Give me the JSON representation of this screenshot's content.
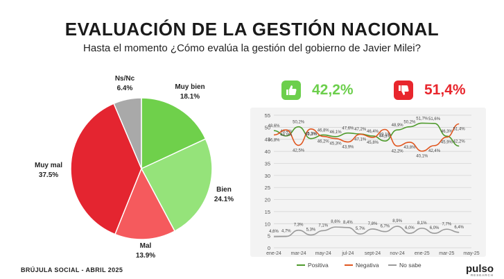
{
  "header": {
    "title": "EVALUACIÓN DE LA GESTIÓN NACIONAL",
    "subtitle": "Hasta el momento ¿Cómo evalúa la gestión del gobierno de Javier Milei?"
  },
  "summary": {
    "positive": {
      "value": "42,2%",
      "icon": "thumbs-up-icon",
      "color": "#6ccf4c"
    },
    "negative": {
      "value": "51,4%",
      "icon": "thumbs-down-icon",
      "color": "#e8262d"
    }
  },
  "footer": {
    "source": "BRÚJULA SOCIAL - ABRIL 2025"
  },
  "brand": {
    "name": "pulso",
    "tagline": "RESEARCH"
  },
  "chart_data": [
    {
      "type": "pie",
      "slices": [
        {
          "label": "Muy bien",
          "value_label": "18.1%",
          "value": 18.1,
          "color": "#6fd04b"
        },
        {
          "label": "Bien",
          "value_label": "24.1%",
          "value": 24.1,
          "color": "#95e37a"
        },
        {
          "label": "Mal",
          "value_label": "13.9%",
          "value": 13.9,
          "color": "#f55a5d"
        },
        {
          "label": "Muy mal",
          "value_label": "37.5%",
          "value": 37.5,
          "color": "#e42530"
        },
        {
          "label": "Ns/Nc",
          "value_label": "6.4%",
          "value": 6.4,
          "color": "#a9a9a9"
        }
      ]
    },
    {
      "type": "line",
      "x": [
        "ene-24",
        "feb-24",
        "mar-24",
        "abr-24",
        "may-24",
        "jun-24",
        "jul-24",
        "ago-24",
        "sept-24",
        "oct-24",
        "nov-24",
        "dic-24",
        "ene-25",
        "feb-25",
        "mar-25",
        "abr-25"
      ],
      "x_tick_labels": [
        "ene-24",
        "mar-24",
        "may-24",
        "jul-24",
        "sept-24",
        "nov-24",
        "ene-25",
        "mar-25",
        "may-25"
      ],
      "ylim": [
        0,
        55
      ],
      "y_ticks": [
        0,
        5,
        10,
        15,
        20,
        25,
        30,
        35,
        40,
        45,
        50,
        55
      ],
      "grid": true,
      "legend": "bottom",
      "series": [
        {
          "name": "Positiva",
          "color": "#4e9a2c",
          "values": [
            48.6,
            46.4,
            50.2,
            45.3,
            46.8,
            46.1,
            47.6,
            47.2,
            46.4,
            44.3,
            48.9,
            50.2,
            51.7,
            51.6,
            46.3,
            42.2
          ],
          "labels": [
            "48,6%",
            "46,4%",
            "50,2%",
            "45,3%",
            "46,8%",
            "46,1%",
            "47,6%",
            "47,2%",
            "46,4%",
            "44,3%",
            "48,9%",
            "50,2%",
            "51,7%",
            "51,6%",
            "46,3%",
            "42,2%"
          ]
        },
        {
          "name": "Negativa",
          "color": "#e0561f",
          "values": [
            46.8,
            48.9,
            42.5,
            49.3,
            46.2,
            45.3,
            43.9,
            47.1,
            45.8,
            49.1,
            42.2,
            43.8,
            40.1,
            42.4,
            45.9,
            51.4
          ],
          "labels": [
            "46,8%",
            "48,9%",
            "42,5%",
            "49,3%",
            "46,2%",
            "45,3%",
            "43,9%",
            "47,1%",
            "45,8%",
            "49,1%",
            "42,2%",
            "43,8%",
            "40,1%",
            "42,4%",
            "45,9%",
            "51,4%"
          ]
        },
        {
          "name": "No sabe",
          "color": "#9a9a9a",
          "values": [
            4.6,
            4.7,
            7.3,
            5.3,
            7.1,
            8.6,
            8.4,
            5.7,
            7.8,
            6.7,
            8.9,
            6.0,
            8.1,
            6.0,
            7.7,
            6.4
          ],
          "labels": [
            "4,6%",
            "4,7%",
            "7,3%",
            "5,3%",
            "7,1%",
            "8,6%",
            "8,4%",
            "5,7%",
            "7,8%",
            "6,7%",
            "8,9%",
            "6,0%",
            "8,1%",
            "6,0%",
            "7,7%",
            "6,4%"
          ]
        }
      ]
    }
  ]
}
